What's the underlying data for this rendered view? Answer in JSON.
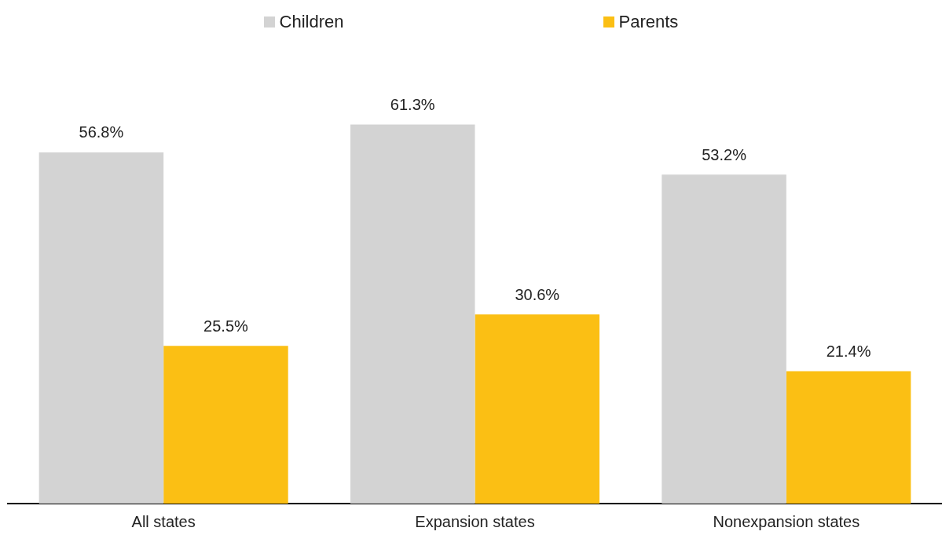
{
  "chart_data": {
    "type": "bar",
    "categories": [
      "All states",
      "Expansion states",
      "Nonexpansion states"
    ],
    "series": [
      {
        "name": "Children",
        "color": "#d3d3d3",
        "values": [
          56.8,
          61.3,
          53.2
        ],
        "value_labels": [
          "56.8%",
          "61.3%",
          "53.2%"
        ]
      },
      {
        "name": "Parents",
        "color": "#fbbf14",
        "values": [
          25.5,
          30.6,
          21.4
        ],
        "value_labels": [
          "25.5%",
          "30.6%",
          "21.4%"
        ]
      }
    ],
    "legend": "top",
    "grid": false
  }
}
